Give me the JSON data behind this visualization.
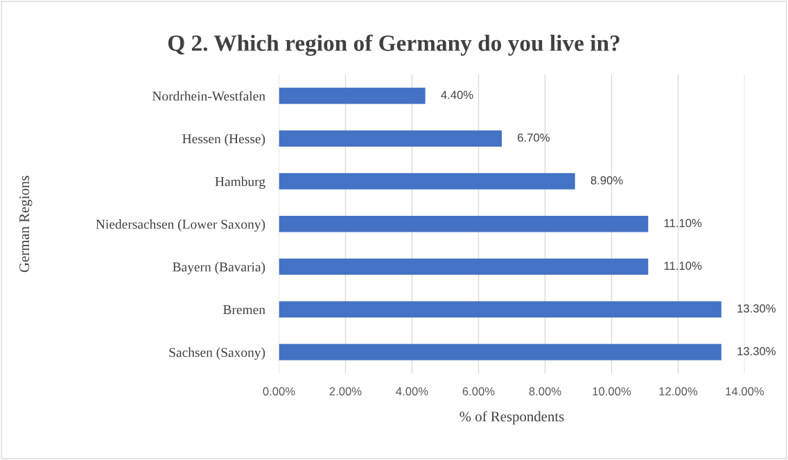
{
  "chart_data": {
    "type": "bar",
    "orientation": "horizontal",
    "title": "Q 2. Which region of Germany do you live in?",
    "xlabel": "% of Respondents",
    "ylabel": "German Regions",
    "categories": [
      "Nordrhein-Westfalen",
      "Hessen (Hesse)",
      "Hamburg",
      "Niedersachsen (Lower Saxony)",
      "Bayern (Bavaria)",
      "Bremen",
      "Sachsen (Saxony)"
    ],
    "values": [
      4.4,
      6.7,
      8.9,
      11.1,
      11.1,
      13.3,
      13.3
    ],
    "value_labels": [
      "4.40%",
      "6.70%",
      "8.90%",
      "11.10%",
      "11.10%",
      "13.30%",
      "13.30%"
    ],
    "color": "#4472c4",
    "xlim": [
      0,
      14
    ],
    "xticks": [
      {
        "value": 0,
        "label": "0.00%"
      },
      {
        "value": 2,
        "label": "2.00%"
      },
      {
        "value": 4,
        "label": "4.00%"
      },
      {
        "value": 6,
        "label": "6.00%"
      },
      {
        "value": 8,
        "label": "8.00%"
      },
      {
        "value": 10,
        "label": "10.00%"
      },
      {
        "value": 12,
        "label": "12.00%"
      },
      {
        "value": 14,
        "label": "14.00%"
      }
    ],
    "grid": "x",
    "legend": false
  }
}
